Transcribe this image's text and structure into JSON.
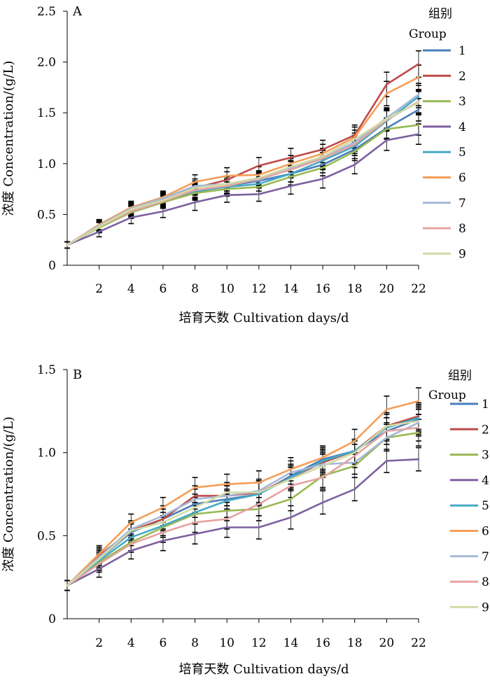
{
  "chart_data": [
    {
      "type": "line",
      "panel_label": "A",
      "xlabel": "培育天数 Cultivation days/d",
      "ylabel": "浓度 Concentration/(g/L)",
      "x": [
        0,
        2,
        4,
        6,
        8,
        10,
        12,
        14,
        16,
        18,
        20,
        22
      ],
      "x_ticks": [
        2,
        4,
        6,
        8,
        10,
        12,
        14,
        16,
        18,
        20,
        22
      ],
      "y_ticks": [
        0,
        0.5,
        1.0,
        1.5,
        2.0,
        2.5
      ],
      "y_tick_labels": [
        "0",
        "0.5",
        "1.0",
        "1.5",
        "2.0",
        "2.5"
      ],
      "xlim": [
        0,
        22
      ],
      "ylim": [
        0,
        2.5
      ],
      "grid": false,
      "legend_title_cn": "组别",
      "legend_title_en": "Group",
      "legend_position": "right",
      "series": [
        {
          "name": "1",
          "color": "#4a7ebb",
          "values": [
            0.2,
            0.38,
            0.52,
            0.62,
            0.72,
            0.78,
            0.83,
            0.9,
            0.99,
            1.14,
            1.35,
            1.53
          ],
          "errors": [
            0.03,
            0.05,
            0.06,
            0.06,
            0.07,
            0.07,
            0.07,
            0.08,
            0.08,
            0.09,
            0.1,
            0.11
          ]
        },
        {
          "name": "2",
          "color": "#be4b48",
          "values": [
            0.2,
            0.39,
            0.55,
            0.65,
            0.76,
            0.84,
            0.98,
            1.06,
            1.14,
            1.28,
            1.78,
            1.98
          ],
          "errors": [
            0.03,
            0.05,
            0.06,
            0.06,
            0.07,
            0.08,
            0.08,
            0.09,
            0.09,
            0.1,
            0.12,
            0.13
          ]
        },
        {
          "name": "3",
          "color": "#98b954",
          "values": [
            0.2,
            0.37,
            0.52,
            0.62,
            0.71,
            0.75,
            0.77,
            0.87,
            0.96,
            1.12,
            1.34,
            1.38
          ],
          "errors": [
            0.03,
            0.05,
            0.06,
            0.06,
            0.07,
            0.07,
            0.07,
            0.08,
            0.08,
            0.09,
            0.1,
            0.1
          ]
        },
        {
          "name": "4",
          "color": "#7d60a0",
          "values": [
            0.2,
            0.33,
            0.47,
            0.53,
            0.62,
            0.69,
            0.7,
            0.78,
            0.85,
            0.99,
            1.23,
            1.29
          ],
          "errors": [
            0.03,
            0.05,
            0.06,
            0.06,
            0.08,
            0.07,
            0.07,
            0.08,
            0.09,
            0.09,
            0.1,
            0.1
          ]
        },
        {
          "name": "5",
          "color": "#46aac5",
          "values": [
            0.2,
            0.38,
            0.54,
            0.64,
            0.73,
            0.77,
            0.8,
            0.9,
            1.03,
            1.17,
            1.42,
            1.66
          ],
          "errors": [
            0.03,
            0.05,
            0.06,
            0.06,
            0.07,
            0.07,
            0.07,
            0.08,
            0.08,
            0.09,
            0.1,
            0.11
          ]
        },
        {
          "name": "6",
          "color": "#f59d56",
          "values": [
            0.2,
            0.4,
            0.57,
            0.67,
            0.82,
            0.88,
            0.89,
            1.0,
            1.1,
            1.26,
            1.69,
            1.85
          ],
          "errors": [
            0.03,
            0.05,
            0.06,
            0.06,
            0.07,
            0.08,
            0.08,
            0.08,
            0.09,
            0.1,
            0.12,
            0.12
          ]
        },
        {
          "name": "7",
          "color": "#a5b8d8",
          "values": [
            0.2,
            0.39,
            0.56,
            0.66,
            0.78,
            0.8,
            0.84,
            0.95,
            1.06,
            1.21,
            1.45,
            1.68
          ],
          "errors": [
            0.03,
            0.05,
            0.06,
            0.06,
            0.07,
            0.07,
            0.07,
            0.08,
            0.08,
            0.09,
            0.1,
            0.11
          ]
        },
        {
          "name": "8",
          "color": "#e6a3a1",
          "values": [
            0.2,
            0.38,
            0.53,
            0.63,
            0.74,
            0.78,
            0.85,
            0.94,
            1.05,
            1.19,
            1.43,
            1.61
          ],
          "errors": [
            0.03,
            0.05,
            0.06,
            0.06,
            0.07,
            0.07,
            0.07,
            0.08,
            0.08,
            0.09,
            0.1,
            0.11
          ]
        },
        {
          "name": "9",
          "color": "#d1dba5",
          "values": [
            0.2,
            0.38,
            0.55,
            0.64,
            0.76,
            0.8,
            0.86,
            0.97,
            1.07,
            1.24,
            1.44,
            1.6
          ],
          "errors": [
            0.03,
            0.05,
            0.06,
            0.06,
            0.07,
            0.07,
            0.07,
            0.08,
            0.08,
            0.09,
            0.1,
            0.11
          ]
        }
      ]
    },
    {
      "type": "line",
      "panel_label": "B",
      "xlabel": "培育天数 Cultivation days/d",
      "ylabel": "浓度 Concentration/(g/L)",
      "x": [
        0,
        2,
        4,
        6,
        8,
        10,
        12,
        14,
        16,
        18,
        20,
        22
      ],
      "x_ticks": [
        2,
        4,
        6,
        8,
        10,
        12,
        14,
        16,
        18,
        20,
        22
      ],
      "y_ticks": [
        0,
        0.5,
        1.0,
        1.5
      ],
      "y_tick_labels": [
        "0",
        "0.5",
        "1.0",
        "1.5"
      ],
      "xlim": [
        0,
        22
      ],
      "ylim": [
        0,
        1.5
      ],
      "grid": false,
      "legend_title_cn": "组别",
      "legend_title_en": "Group",
      "legend_position": "right",
      "series": [
        {
          "name": "1",
          "color": "#4a7ebb",
          "values": [
            0.2,
            0.36,
            0.52,
            0.6,
            0.69,
            0.72,
            0.75,
            0.86,
            0.96,
            1.01,
            1.13,
            1.2
          ],
          "errors": [
            0.03,
            0.05,
            0.05,
            0.06,
            0.06,
            0.06,
            0.07,
            0.07,
            0.07,
            0.07,
            0.08,
            0.08
          ]
        },
        {
          "name": "2",
          "color": "#be4b48",
          "values": [
            0.2,
            0.38,
            0.53,
            0.6,
            0.74,
            0.74,
            0.76,
            0.85,
            0.94,
            1.01,
            1.16,
            1.22
          ],
          "errors": [
            0.03,
            0.05,
            0.05,
            0.06,
            0.06,
            0.06,
            0.07,
            0.07,
            0.07,
            0.07,
            0.08,
            0.08
          ]
        },
        {
          "name": "3",
          "color": "#98b954",
          "values": [
            0.2,
            0.34,
            0.46,
            0.55,
            0.63,
            0.65,
            0.66,
            0.72,
            0.86,
            0.92,
            1.09,
            1.12
          ],
          "errors": [
            0.03,
            0.05,
            0.05,
            0.06,
            0.06,
            0.06,
            0.07,
            0.07,
            0.07,
            0.07,
            0.08,
            0.08
          ]
        },
        {
          "name": "4",
          "color": "#7d60a0",
          "values": [
            0.2,
            0.3,
            0.41,
            0.47,
            0.51,
            0.55,
            0.55,
            0.61,
            0.7,
            0.78,
            0.95,
            0.96
          ],
          "errors": [
            0.03,
            0.05,
            0.05,
            0.06,
            0.06,
            0.06,
            0.07,
            0.07,
            0.07,
            0.07,
            0.07,
            0.07
          ]
        },
        {
          "name": "5",
          "color": "#46aac5",
          "values": [
            0.2,
            0.35,
            0.49,
            0.56,
            0.64,
            0.71,
            0.75,
            0.85,
            0.95,
            1.01,
            1.15,
            1.21
          ],
          "errors": [
            0.03,
            0.05,
            0.05,
            0.06,
            0.06,
            0.06,
            0.07,
            0.07,
            0.07,
            0.07,
            0.08,
            0.08
          ]
        },
        {
          "name": "6",
          "color": "#f59d56",
          "values": [
            0.2,
            0.39,
            0.58,
            0.67,
            0.79,
            0.81,
            0.82,
            0.9,
            0.97,
            1.07,
            1.26,
            1.31
          ],
          "errors": [
            0.03,
            0.05,
            0.05,
            0.06,
            0.06,
            0.06,
            0.07,
            0.07,
            0.07,
            0.07,
            0.08,
            0.08
          ]
        },
        {
          "name": "7",
          "color": "#a5b8d8",
          "values": [
            0.2,
            0.37,
            0.54,
            0.62,
            0.72,
            0.74,
            0.77,
            0.88,
            0.93,
            0.94,
            1.09,
            1.18
          ],
          "errors": [
            0.03,
            0.05,
            0.05,
            0.06,
            0.06,
            0.06,
            0.07,
            0.07,
            0.07,
            0.07,
            0.08,
            0.08
          ]
        },
        {
          "name": "8",
          "color": "#e6a3a1",
          "values": [
            0.2,
            0.33,
            0.45,
            0.52,
            0.58,
            0.6,
            0.69,
            0.8,
            0.85,
            0.98,
            1.13,
            1.15
          ],
          "errors": [
            0.03,
            0.05,
            0.05,
            0.06,
            0.06,
            0.06,
            0.07,
            0.07,
            0.07,
            0.07,
            0.08,
            0.08
          ]
        },
        {
          "name": "9",
          "color": "#d1dba5",
          "values": [
            0.2,
            0.36,
            0.53,
            0.58,
            0.67,
            0.76,
            0.76,
            0.84,
            0.92,
            1.0,
            1.16,
            1.19
          ],
          "errors": [
            0.03,
            0.05,
            0.05,
            0.06,
            0.06,
            0.06,
            0.07,
            0.07,
            0.07,
            0.07,
            0.08,
            0.08
          ]
        }
      ]
    }
  ]
}
